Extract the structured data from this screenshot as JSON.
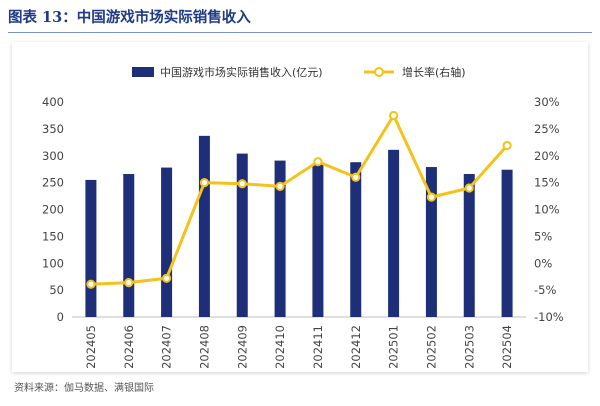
{
  "figure": {
    "title": "图表 13：中国游戏市场实际销售收入",
    "source": "资料来源：伽马数据、满银国际"
  },
  "colors": {
    "bar": "#1f2e78",
    "line": "#f4c21a",
    "marker_fill": "#ffffff",
    "title": "#1f3a86",
    "axis_text": "#444444"
  },
  "chart_data": {
    "type": "bar",
    "categories": [
      "202405",
      "202406",
      "202407",
      "202408",
      "202409",
      "202410",
      "202411",
      "202412",
      "202501",
      "202502",
      "202503",
      "202504"
    ],
    "series": [
      {
        "name": "中国游戏市场实际销售收入(亿元)",
        "type": "bar",
        "axis": "left",
        "values": [
          255,
          266,
          278,
          337,
          304,
          291,
          284,
          288,
          311,
          279,
          266,
          274
        ]
      },
      {
        "name": "增长率(右轴)",
        "type": "line",
        "axis": "right",
        "values": [
          -3.9,
          -3.6,
          -2.8,
          15.0,
          14.8,
          14.3,
          18.9,
          16.0,
          27.5,
          12.3,
          14.0,
          21.9
        ]
      }
    ],
    "ylim_left": [
      0,
      400
    ],
    "yticks_left": [
      "400",
      "350",
      "300",
      "250",
      "200",
      "150",
      "100",
      "50",
      "0"
    ],
    "ylim_right": [
      -10,
      30
    ],
    "yticks_right": [
      "30%",
      "25%",
      "20%",
      "15%",
      "10%",
      "5%",
      "0%",
      "-5%",
      "-10%"
    ],
    "legend_position": "top",
    "grid": false
  }
}
